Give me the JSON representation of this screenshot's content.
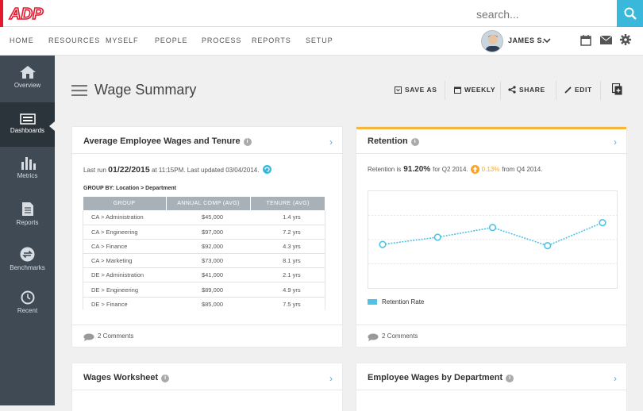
{
  "brand": {
    "logo_text": "ADP",
    "accent": "#e3182d",
    "primary": "#3ab8dc"
  },
  "search": {
    "placeholder": "search..."
  },
  "nav": {
    "items": [
      "HOME",
      "RESOURCES",
      "MYSELF",
      "PEOPLE",
      "PROCESS",
      "REPORTS",
      "SETUP"
    ],
    "user_name": "JAMES S.",
    "icons": [
      "calendar-icon",
      "mail-icon",
      "gear-icon"
    ]
  },
  "sidebar": {
    "items": [
      {
        "label": "Overview",
        "icon": "home-icon"
      },
      {
        "label": "Dashboards",
        "icon": "dashboard-icon",
        "active": true
      },
      {
        "label": "Metrics",
        "icon": "bar-chart-icon"
      },
      {
        "label": "Reports",
        "icon": "document-icon"
      },
      {
        "label": "Benchmarks",
        "icon": "benchmark-icon"
      },
      {
        "label": "Recent",
        "icon": "clock-icon"
      }
    ]
  },
  "page": {
    "title": "Wage Summary"
  },
  "toolbar": {
    "save_as": "SAVE AS",
    "weekly": "WEEKLY",
    "share": "SHARE",
    "edit": "EDIT"
  },
  "cards": {
    "wages_tenure": {
      "title": "Average Employee Wages and Tenure",
      "last_run_prefix": "Last run",
      "last_run_date": "01/22/2015",
      "last_run_suffix": "at 11:15PM. Last updated 03/04/2014.",
      "group_by": "GROUP BY: Location > Department",
      "columns": [
        "GROUP",
        "ANNUAL COMP (AVG)",
        "TENURE (AVG)"
      ],
      "rows": [
        [
          "CA > Administration",
          "$45,000",
          "1.4 yrs"
        ],
        [
          "CA > Engineering",
          "$97,000",
          "7.2 yrs"
        ],
        [
          "CA > Finance",
          "$92,000",
          "4.3 yrs"
        ],
        [
          "CA > Marketing",
          "$73,000",
          "8.1 yrs"
        ],
        [
          "DE > Administration",
          "$41,000",
          "2.1 yrs"
        ],
        [
          "DE > Engineering",
          "$89,000",
          "4.9 yrs"
        ],
        [
          "DE > Finance",
          "$85,000",
          "7.5 yrs"
        ]
      ],
      "comments": "2 Comments"
    },
    "retention": {
      "title": "Retention",
      "text_prefix": "Retention is",
      "rate": "91.20%",
      "text_mid": "for Q2 2014.",
      "change": "0.13%",
      "text_suffix": "from Q4 2014.",
      "legend": "Retention Rate",
      "comments": "2 Comments"
    },
    "worksheet": {
      "title": "Wages Worksheet"
    },
    "by_department": {
      "title": "Employee Wages by Department"
    }
  },
  "chart_data": {
    "type": "line",
    "x": [
      1,
      2,
      3,
      4,
      5
    ],
    "series": [
      {
        "name": "Retention Rate",
        "values": [
          90.6,
          91.2,
          92.0,
          90.5,
          92.4
        ],
        "color": "#4fc3e6"
      }
    ],
    "ylim": [
      87,
      95
    ],
    "grid": true,
    "legend": "bottom-left"
  }
}
